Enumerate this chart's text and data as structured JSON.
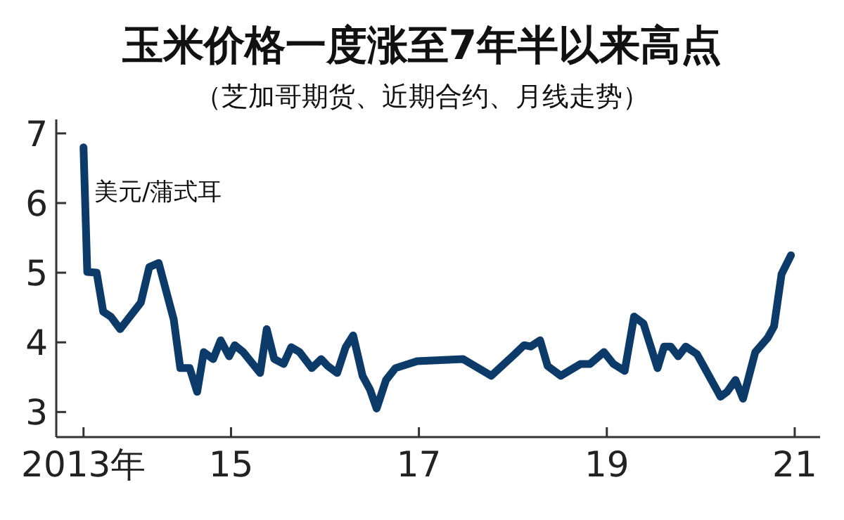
{
  "chart_data": {
    "type": "line",
    "title": "玉米价格一度涨至7年半以来高点",
    "subtitle": "（芝加哥期货、近期合约、月线走势）",
    "ylabel": "美元/蒲式耳",
    "xlim": [
      2013.14,
      2021.27
    ],
    "ylim": [
      2.64,
      7.2
    ],
    "xticks": [
      {
        "value": 2013.43,
        "label": "2013年"
      },
      {
        "value": 2015,
        "label": "15"
      },
      {
        "value": 2017,
        "label": "17"
      },
      {
        "value": 2019,
        "label": "19"
      },
      {
        "value": 2021,
        "label": "21"
      }
    ],
    "yticks": [
      3,
      4,
      5,
      6,
      7
    ],
    "grid": false,
    "marker": "none",
    "line_style": "solid",
    "series": [
      {
        "color": "#0d3b69",
        "x": [
          2013.43,
          2013.47,
          2013.57,
          2013.64,
          2013.72,
          2013.82,
          2014.04,
          2014.13,
          2014.23,
          2014.39,
          2014.46,
          2014.56,
          2014.64,
          2014.71,
          2014.81,
          2014.89,
          2014.98,
          2015.04,
          2015.13,
          2015.31,
          2015.38,
          2015.46,
          2015.56,
          2015.64,
          2015.73,
          2015.86,
          2015.96,
          2016.03,
          2016.13,
          2016.22,
          2016.3,
          2016.4,
          2016.48,
          2016.55,
          2016.65,
          2016.75,
          2016.98,
          2017.47,
          2017.77,
          2018.02,
          2018.12,
          2018.19,
          2018.29,
          2018.37,
          2018.51,
          2018.72,
          2018.82,
          2018.97,
          2019.07,
          2019.19,
          2019.29,
          2019.39,
          2019.54,
          2019.61,
          2019.68,
          2019.76,
          2019.84,
          2019.96,
          2020.21,
          2020.28,
          2020.37,
          2020.45,
          2020.58,
          2020.71,
          2020.78,
          2020.86,
          2020.96
        ],
        "values": [
          6.8,
          5.01,
          5.0,
          4.44,
          4.37,
          4.19,
          4.57,
          5.08,
          5.14,
          4.33,
          3.63,
          3.63,
          3.29,
          3.86,
          3.76,
          4.03,
          3.8,
          3.96,
          3.86,
          3.56,
          4.19,
          3.76,
          3.69,
          3.93,
          3.86,
          3.63,
          3.76,
          3.66,
          3.56,
          3.93,
          4.1,
          3.52,
          3.32,
          3.05,
          3.46,
          3.63,
          3.73,
          3.76,
          3.52,
          3.83,
          3.96,
          3.94,
          4.03,
          3.66,
          3.52,
          3.69,
          3.69,
          3.86,
          3.69,
          3.59,
          4.37,
          4.27,
          3.63,
          3.94,
          3.94,
          3.8,
          3.94,
          3.83,
          3.22,
          3.29,
          3.46,
          3.19,
          3.86,
          4.06,
          4.23,
          4.98,
          5.25
        ]
      }
    ]
  }
}
